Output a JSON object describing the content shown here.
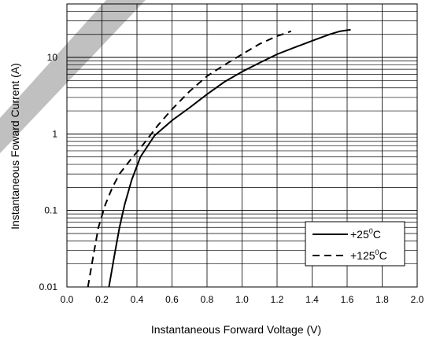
{
  "chart_data": {
    "type": "line",
    "title": "",
    "xlabel": "Instantaneous Forward Voltage (V)",
    "ylabel": "Instantaneous Foward Current (A)",
    "x_scale": "linear",
    "y_scale": "log",
    "xlim": [
      0,
      2.0
    ],
    "ylim": [
      0.01,
      50
    ],
    "x_ticks": [
      "0.0",
      "0.2",
      "0.4",
      "0.6",
      "0.8",
      "1.0",
      "1.2",
      "1.4",
      "1.6",
      "1.8",
      "2.0"
    ],
    "y_ticks": [
      "0.01",
      "0.1",
      "1",
      "10"
    ],
    "grid": true,
    "legend_position": "bottom-right",
    "series": [
      {
        "name": "+25°C",
        "label_main": "+25",
        "label_sup": "0",
        "label_unit": "C",
        "style": "solid",
        "color": "#000000",
        "x": [
          0.24,
          0.27,
          0.3,
          0.33,
          0.37,
          0.42,
          0.5,
          0.6,
          0.7,
          0.8,
          0.9,
          1.0,
          1.1,
          1.2,
          1.3,
          1.4,
          1.5,
          1.56,
          1.62
        ],
        "y": [
          0.01,
          0.025,
          0.06,
          0.12,
          0.25,
          0.5,
          0.95,
          1.5,
          2.2,
          3.3,
          4.8,
          6.5,
          8.5,
          11,
          13.5,
          16.5,
          20,
          22,
          23
        ]
      },
      {
        "name": "+125°C",
        "label_main": "+125",
        "label_sup": "0",
        "label_unit": "C",
        "style": "dashed",
        "color": "#000000",
        "x": [
          0.12,
          0.15,
          0.18,
          0.22,
          0.26,
          0.3,
          0.36,
          0.44,
          0.52,
          0.6,
          0.7,
          0.8,
          0.9,
          1.0,
          1.1,
          1.2,
          1.28
        ],
        "y": [
          0.01,
          0.025,
          0.06,
          0.12,
          0.2,
          0.3,
          0.45,
          0.75,
          1.3,
          2.1,
          3.6,
          5.7,
          8.0,
          11,
          15,
          19,
          22
        ]
      }
    ]
  },
  "colors": {
    "watermark": "#bdbdbd",
    "grid": "#000000",
    "background": "#ffffff"
  }
}
